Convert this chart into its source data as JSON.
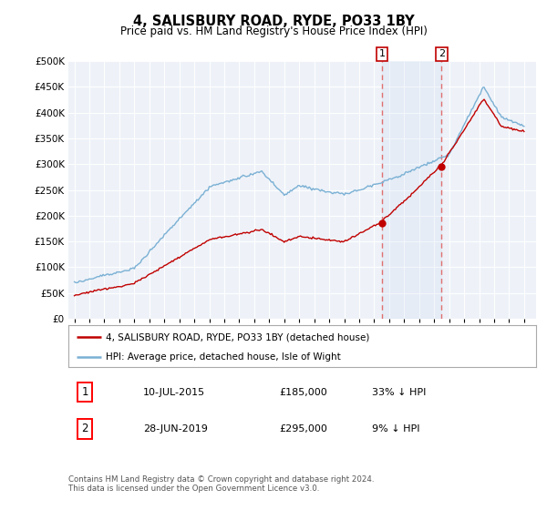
{
  "title": "4, SALISBURY ROAD, RYDE, PO33 1BY",
  "subtitle": "Price paid vs. HM Land Registry's House Price Index (HPI)",
  "ylim": [
    0,
    500000
  ],
  "yticks": [
    0,
    50000,
    100000,
    150000,
    200000,
    250000,
    300000,
    350000,
    400000,
    450000,
    500000
  ],
  "hpi_color": "#7ab0d4",
  "price_color": "#c00000",
  "vline_color": "#e07070",
  "sale1_date_num": 2015.53,
  "sale1_price": 185000,
  "sale2_date_num": 2019.49,
  "sale2_price": 295000,
  "legend_line1": "4, SALISBURY ROAD, RYDE, PO33 1BY (detached house)",
  "legend_line2": "HPI: Average price, detached house, Isle of Wight",
  "footnote": "Contains HM Land Registry data © Crown copyright and database right 2024.\nThis data is licensed under the Open Government Licence v3.0.",
  "background_color": "#ffffff",
  "plot_bg_color": "#eef2f8"
}
